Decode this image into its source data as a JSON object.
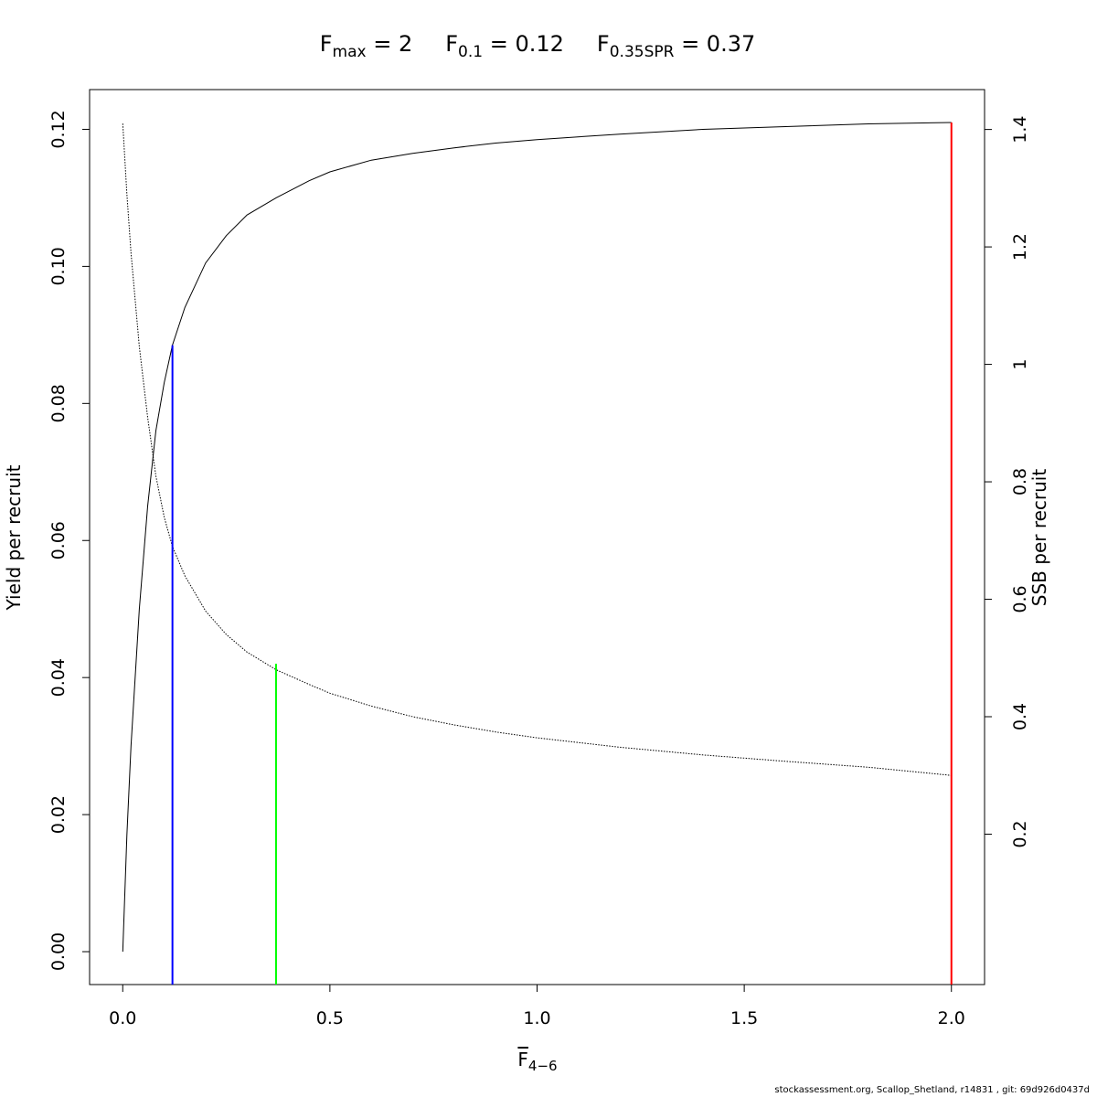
{
  "chart_data": {
    "type": "line",
    "title_parts": [
      {
        "main": "F",
        "sub": "max",
        "rest": " = 2"
      },
      {
        "main": "F",
        "sub": "0.1",
        "rest": " = 0.12"
      },
      {
        "main": "F",
        "sub": "0.35SPR",
        "rest": " = 0.37"
      }
    ],
    "xlabel": {
      "main": "F",
      "sub": "4−6"
    },
    "ylabel_left": "Yield per recruit",
    "ylabel_right": "SSB per recruit",
    "xlim": [
      -0.08,
      2.08
    ],
    "ylim_left": [
      -0.0048,
      0.1258
    ],
    "ylim_right": [
      -0.0561,
      1.4679
    ],
    "x_ticks": [
      0,
      0.5,
      1,
      1.5,
      2
    ],
    "x_tick_labels": [
      "0.0",
      "0.5",
      "1.0",
      "1.5",
      "2.0"
    ],
    "y_left_ticks": [
      0,
      0.02,
      0.04,
      0.06,
      0.08,
      0.1,
      0.12
    ],
    "y_left_tick_labels": [
      "0.00",
      "0.02",
      "0.04",
      "0.06",
      "0.08",
      "0.10",
      "0.12"
    ],
    "y_right_ticks": [
      0.2,
      0.4,
      0.6,
      0.8,
      1,
      1.2,
      1.4
    ],
    "y_right_tick_labels": [
      "0.2",
      "0.4",
      "0.6",
      "0.8",
      "1",
      "1.2",
      "1.4"
    ],
    "series": [
      {
        "axis": "left",
        "style": "solid",
        "color": "#000000",
        "x": [
          0,
          0.01,
          0.02,
          0.04,
          0.06,
          0.08,
          0.1,
          0.12,
          0.15,
          0.2,
          0.25,
          0.3,
          0.37,
          0.45,
          0.5,
          0.6,
          0.7,
          0.8,
          0.9,
          1.0,
          1.2,
          1.4,
          1.6,
          1.8,
          2.0
        ],
        "values": [
          0,
          0.017,
          0.03,
          0.05,
          0.065,
          0.076,
          0.083,
          0.0885,
          0.094,
          0.1005,
          0.1045,
          0.1075,
          0.11,
          0.1125,
          0.1138,
          0.1155,
          0.1165,
          0.1173,
          0.118,
          0.1185,
          0.1193,
          0.12,
          0.1204,
          0.1208,
          0.121
        ]
      },
      {
        "axis": "right",
        "style": "dotted",
        "color": "#000000",
        "x": [
          0,
          0.01,
          0.02,
          0.04,
          0.06,
          0.08,
          0.1,
          0.12,
          0.15,
          0.2,
          0.25,
          0.3,
          0.37,
          0.45,
          0.5,
          0.6,
          0.7,
          0.8,
          0.9,
          1.0,
          1.2,
          1.4,
          1.6,
          1.8,
          2.0
        ],
        "values": [
          1.41,
          1.29,
          1.19,
          1.03,
          0.91,
          0.81,
          0.74,
          0.69,
          0.64,
          0.58,
          0.54,
          0.51,
          0.48,
          0.455,
          0.44,
          0.418,
          0.4,
          0.386,
          0.374,
          0.364,
          0.348,
          0.335,
          0.324,
          0.314,
          0.3
        ]
      }
    ],
    "vlines": [
      {
        "label": "F0.1",
        "x": 0.12,
        "y_top": 0.0885,
        "color": "#0000ff"
      },
      {
        "label": "F0.35SPR",
        "x": 0.37,
        "y_top": 0.042,
        "color": "#00ff00"
      },
      {
        "label": "Fmax",
        "x": 2.0,
        "y_top": 0.121,
        "color": "#ff0000"
      }
    ],
    "grid": false,
    "legend": "none"
  },
  "footer_text": "stockassessment.org, Scallop_Shetland, r14831 , git: 69d926d0437d"
}
